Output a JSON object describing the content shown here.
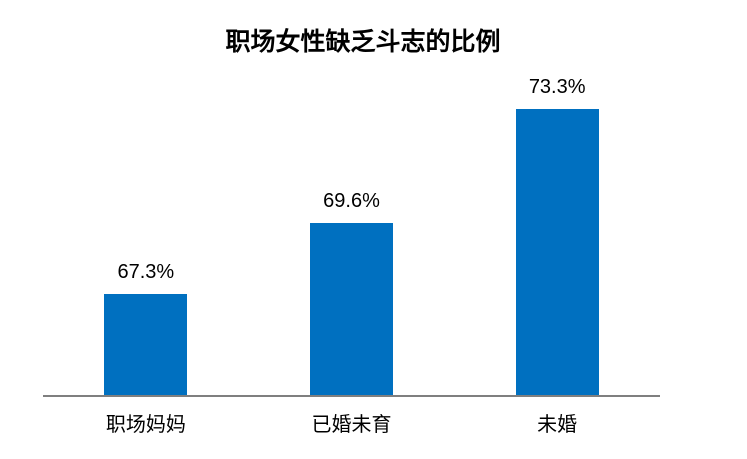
{
  "colors": {
    "bar": "#0070C0",
    "axis": "#7F7F7F",
    "title_text": "#000000",
    "label_text": "#000000",
    "background": "#FFFFFF"
  },
  "chart_data": {
    "type": "bar",
    "title": "职场女性缺乏斗志的比例",
    "categories": [
      "职场妈妈",
      "已婚未育",
      "未婚"
    ],
    "values": [
      67.3,
      69.6,
      73.3
    ],
    "value_labels": [
      "67.3%",
      "69.6%",
      "73.3%"
    ],
    "xlabel": "",
    "ylabel": "",
    "ylim": [
      64,
      75
    ],
    "grid": false,
    "legend": false,
    "y_axis_visible": false,
    "bar_color": "#0070C0",
    "axis_line_color": "#7F7F7F"
  }
}
